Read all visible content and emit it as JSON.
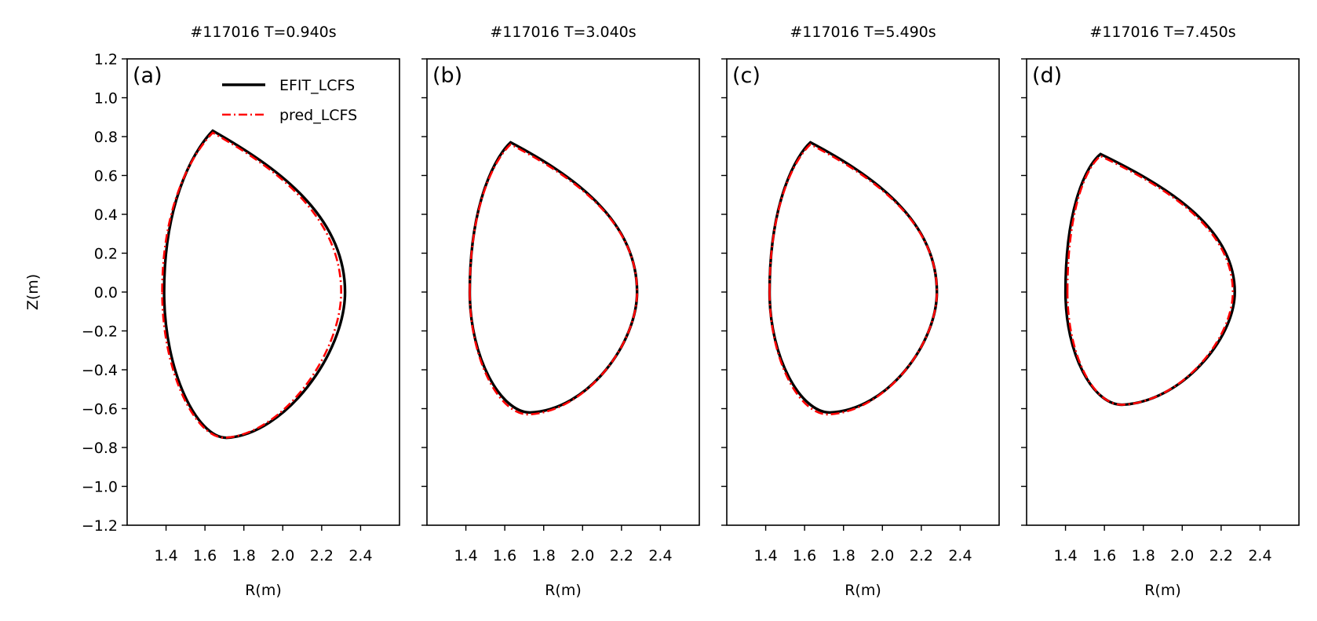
{
  "figure": {
    "ylabel": "Z(m)",
    "xlabel": "R(m)"
  },
  "legend": {
    "entries": [
      {
        "label": "EFIT_LCFS",
        "color": "#000000",
        "style": "solid"
      },
      {
        "label": "pred_LCFS",
        "color": "#ff0000",
        "style": "dashdot"
      }
    ],
    "placement": "top-right of panel (a)"
  },
  "chart_data": [
    {
      "type": "line",
      "panel": "(a)",
      "title": "#117016 T=0.940s",
      "xlabel": "R(m)",
      "ylabel": "Z(m)",
      "xlim": [
        1.2,
        2.6
      ],
      "ylim": [
        -1.2,
        1.2
      ],
      "xticks": [
        "1.4",
        "1.6",
        "1.8",
        "2.0",
        "2.2",
        "2.4"
      ],
      "yticks": [
        "-1.2",
        "-1.0",
        "-0.8",
        "-0.6",
        "-0.4",
        "-0.2",
        "0.0",
        "0.2",
        "0.4",
        "0.6",
        "0.8",
        "1.0",
        "1.2"
      ],
      "grid": false,
      "series": [
        {
          "name": "EFIT_LCFS",
          "color": "#000000",
          "style": "solid",
          "shape": {
            "Rin": 1.39,
            "Rout": 2.32,
            "Rtop": 1.64,
            "Ztop": 0.83,
            "Rbot": 1.71,
            "Zbot": -0.75
          }
        },
        {
          "name": "pred_LCFS",
          "color": "#ff0000",
          "style": "dashdot",
          "shape": {
            "Rin": 1.38,
            "Rout": 2.3,
            "Rtop": 1.64,
            "Ztop": 0.82,
            "Rbot": 1.7,
            "Zbot": -0.75
          }
        }
      ]
    },
    {
      "type": "line",
      "panel": "(b)",
      "title": "#117016 T=3.040s",
      "xlabel": "R(m)",
      "xlim": [
        1.2,
        2.6
      ],
      "ylim": [
        -1.2,
        1.2
      ],
      "xticks": [
        "1.4",
        "1.6",
        "1.8",
        "2.0",
        "2.2",
        "2.4"
      ],
      "grid": false,
      "series": [
        {
          "name": "EFIT_LCFS",
          "color": "#000000",
          "style": "solid",
          "shape": {
            "Rin": 1.42,
            "Rout": 2.28,
            "Rtop": 1.63,
            "Ztop": 0.77,
            "Rbot": 1.73,
            "Zbot": -0.62
          }
        },
        {
          "name": "pred_LCFS",
          "color": "#ff0000",
          "style": "dashdot",
          "shape": {
            "Rin": 1.42,
            "Rout": 2.28,
            "Rtop": 1.63,
            "Ztop": 0.76,
            "Rbot": 1.72,
            "Zbot": -0.63
          }
        }
      ]
    },
    {
      "type": "line",
      "panel": "(c)",
      "title": "#117016 T=5.490s",
      "xlabel": "R(m)",
      "xlim": [
        1.2,
        2.6
      ],
      "ylim": [
        -1.2,
        1.2
      ],
      "xticks": [
        "1.4",
        "1.6",
        "1.8",
        "2.0",
        "2.2",
        "2.4"
      ],
      "grid": false,
      "series": [
        {
          "name": "EFIT_LCFS",
          "color": "#000000",
          "style": "solid",
          "shape": {
            "Rin": 1.42,
            "Rout": 2.28,
            "Rtop": 1.63,
            "Ztop": 0.77,
            "Rbot": 1.73,
            "Zbot": -0.62
          }
        },
        {
          "name": "pred_LCFS",
          "color": "#ff0000",
          "style": "dashdot",
          "shape": {
            "Rin": 1.42,
            "Rout": 2.28,
            "Rtop": 1.63,
            "Ztop": 0.76,
            "Rbot": 1.72,
            "Zbot": -0.63
          }
        }
      ]
    },
    {
      "type": "line",
      "panel": "(d)",
      "title": "#117016 T=7.450s",
      "xlabel": "R(m)",
      "xlim": [
        1.2,
        2.6
      ],
      "ylim": [
        -1.2,
        1.2
      ],
      "xticks": [
        "1.4",
        "1.6",
        "1.8",
        "2.0",
        "2.2",
        "2.4"
      ],
      "grid": false,
      "series": [
        {
          "name": "EFIT_LCFS",
          "color": "#000000",
          "style": "solid",
          "shape": {
            "Rin": 1.4,
            "Rout": 2.27,
            "Rtop": 1.58,
            "Ztop": 0.71,
            "Rbot": 1.69,
            "Zbot": -0.58
          }
        },
        {
          "name": "pred_LCFS",
          "color": "#ff0000",
          "style": "dashdot",
          "shape": {
            "Rin": 1.41,
            "Rout": 2.26,
            "Rtop": 1.58,
            "Ztop": 0.7,
            "Rbot": 1.69,
            "Zbot": -0.58
          }
        }
      ]
    }
  ]
}
